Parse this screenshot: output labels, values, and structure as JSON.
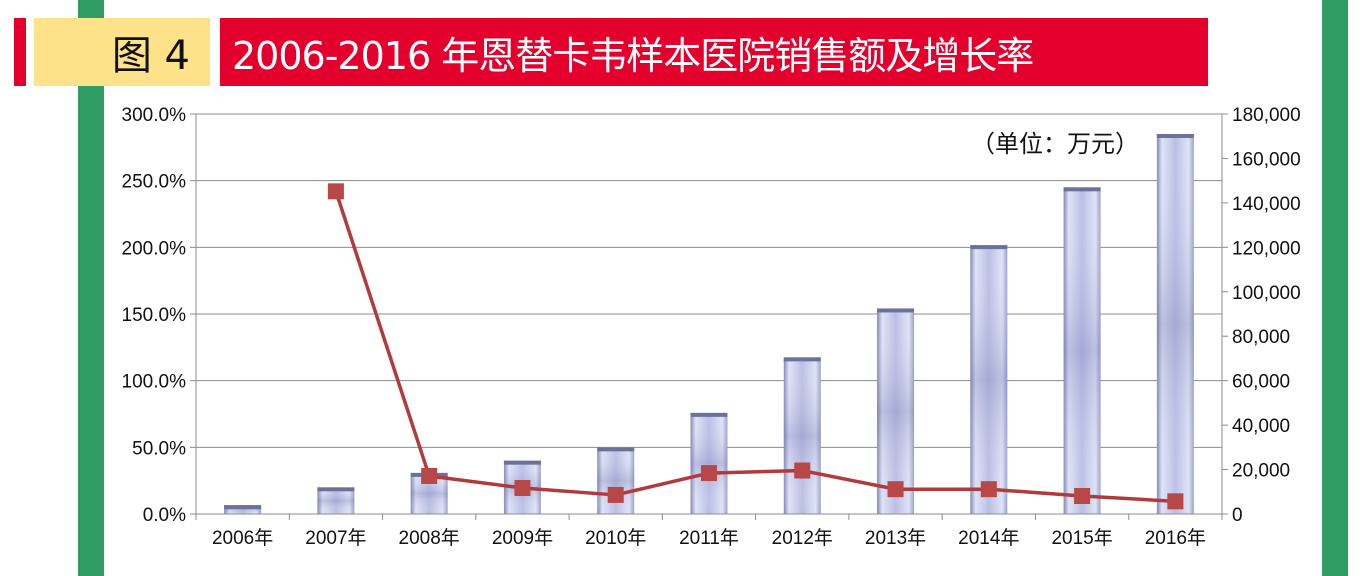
{
  "header": {
    "figure_label": "图 4",
    "title": "2006-2016 年恩替卡韦样本医院销售额及增长率"
  },
  "colors": {
    "side_bar": "#2e9c63",
    "title_bg": "#e3002d",
    "figure_bg": "#fde28a",
    "line": "#b33a3c",
    "marker": "#b84848",
    "bar_light": "#dadff4",
    "bar_dark": "#8c90bd"
  },
  "chart_data": {
    "type": "bar+line",
    "unit_note": "（单位：万元）",
    "categories": [
      "2006年",
      "2007年",
      "2008年",
      "2009年",
      "2010年",
      "2011年",
      "2012年",
      "2013年",
      "2014年",
      "2015年",
      "2016年"
    ],
    "series": [
      {
        "axis": "right",
        "type": "bar",
        "values": [
          4000,
          12000,
          18500,
          24000,
          30000,
          45500,
          70500,
          92500,
          121000,
          147000,
          171000
        ]
      },
      {
        "axis": "left",
        "type": "line",
        "values": [
          null,
          242.0,
          28.5,
          19.5,
          14.3,
          30.7,
          32.6,
          18.6,
          18.6,
          13.5,
          9.5
        ]
      }
    ],
    "left_axis": {
      "min": 0,
      "max": 300,
      "ticks": [
        "0.0%",
        "50.0%",
        "100.0%",
        "150.0%",
        "200.0%",
        "250.0%",
        "300.0%"
      ]
    },
    "right_axis": {
      "min": 0,
      "max": 180000,
      "ticks": [
        "0",
        "20,000",
        "40,000",
        "60,000",
        "80,000",
        "100,000",
        "120,000",
        "140,000",
        "160,000",
        "180,000"
      ]
    },
    "grid": true,
    "legend": "none"
  }
}
